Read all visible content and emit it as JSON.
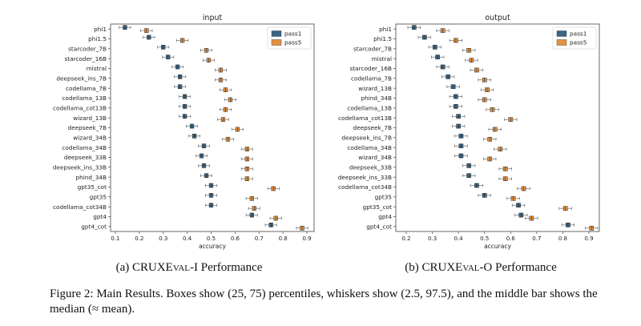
{
  "chart_data": [
    {
      "type": "boxplot",
      "title": "input",
      "xlabel": "accuracy",
      "xlim": [
        0.08,
        0.93
      ],
      "xticks": [
        "0.1",
        "0.2",
        "0.3",
        "0.4",
        "0.5",
        "0.6",
        "0.7",
        "0.8",
        "0.9"
      ],
      "legend": {
        "position": "top-right",
        "entries": [
          "pass1",
          "pass5"
        ]
      },
      "rows": [
        {
          "label": "phi1",
          "pass1": 0.14,
          "pass5": 0.23
        },
        {
          "label": "phi1.5",
          "pass1": 0.24,
          "pass5": 0.38
        },
        {
          "label": "starcoder_7B",
          "pass1": 0.3,
          "pass5": 0.48
        },
        {
          "label": "starcoder_16B",
          "pass1": 0.32,
          "pass5": 0.49
        },
        {
          "label": "mistral",
          "pass1": 0.36,
          "pass5": 0.54
        },
        {
          "label": "deepseek_ins_7B",
          "pass1": 0.37,
          "pass5": 0.54
        },
        {
          "label": "codellama_7B",
          "pass1": 0.37,
          "pass5": 0.56
        },
        {
          "label": "codellama_13B",
          "pass1": 0.39,
          "pass5": 0.58
        },
        {
          "label": "codellama_cot13B",
          "pass1": 0.39,
          "pass5": 0.56
        },
        {
          "label": "wizard_13B",
          "pass1": 0.39,
          "pass5": 0.55
        },
        {
          "label": "deepseek_7B",
          "pass1": 0.42,
          "pass5": 0.61
        },
        {
          "label": "wizard_34B",
          "pass1": 0.43,
          "pass5": 0.57
        },
        {
          "label": "codellama_34B",
          "pass1": 0.47,
          "pass5": 0.65
        },
        {
          "label": "deepseek_33B",
          "pass1": 0.46,
          "pass5": 0.65
        },
        {
          "label": "deepseek_ins_33B",
          "pass1": 0.47,
          "pass5": 0.65
        },
        {
          "label": "phind_34B",
          "pass1": 0.48,
          "pass5": 0.65
        },
        {
          "label": "gpt35_cot",
          "pass1": 0.5,
          "pass5": 0.76
        },
        {
          "label": "gpt35",
          "pass1": 0.5,
          "pass5": 0.67
        },
        {
          "label": "codellama_cot34B",
          "pass1": 0.5,
          "pass5": 0.68
        },
        {
          "label": "gpt4",
          "pass1": 0.67,
          "pass5": 0.77
        },
        {
          "label": "gpt4_cot",
          "pass1": 0.75,
          "pass5": 0.88
        }
      ]
    },
    {
      "type": "boxplot",
      "title": "output",
      "xlabel": "accuracy",
      "xlim": [
        0.16,
        0.94
      ],
      "xticks": [
        "0.2",
        "0.3",
        "0.4",
        "0.5",
        "0.6",
        "0.7",
        "0.8",
        "0.9"
      ],
      "legend": {
        "position": "top-right",
        "entries": [
          "pass1",
          "pass5"
        ]
      },
      "rows": [
        {
          "label": "phi1",
          "pass1": 0.23,
          "pass5": 0.34
        },
        {
          "label": "phi1.5",
          "pass1": 0.27,
          "pass5": 0.39
        },
        {
          "label": "starcoder_7B",
          "pass1": 0.31,
          "pass5": 0.44
        },
        {
          "label": "mistral",
          "pass1": 0.32,
          "pass5": 0.45
        },
        {
          "label": "starcoder_16B",
          "pass1": 0.34,
          "pass5": 0.47
        },
        {
          "label": "codellama_7B",
          "pass1": 0.36,
          "pass5": 0.5
        },
        {
          "label": "wizard_13B",
          "pass1": 0.38,
          "pass5": 0.51
        },
        {
          "label": "phind_34B",
          "pass1": 0.39,
          "pass5": 0.5
        },
        {
          "label": "codellama_13B",
          "pass1": 0.39,
          "pass5": 0.53
        },
        {
          "label": "codellama_cot13B",
          "pass1": 0.4,
          "pass5": 0.6
        },
        {
          "label": "deepseek_7B",
          "pass1": 0.4,
          "pass5": 0.54
        },
        {
          "label": "deepseek_ins_7B",
          "pass1": 0.41,
          "pass5": 0.52
        },
        {
          "label": "codellama_34B",
          "pass1": 0.41,
          "pass5": 0.56
        },
        {
          "label": "wizard_34B",
          "pass1": 0.41,
          "pass5": 0.52
        },
        {
          "label": "deepseek_33B",
          "pass1": 0.44,
          "pass5": 0.58
        },
        {
          "label": "deepseek_ins_33B",
          "pass1": 0.44,
          "pass5": 0.58
        },
        {
          "label": "codellama_cot34B",
          "pass1": 0.47,
          "pass5": 0.65
        },
        {
          "label": "gpt35",
          "pass1": 0.5,
          "pass5": 0.61
        },
        {
          "label": "gpt35_cot",
          "pass1": 0.63,
          "pass5": 0.81
        },
        {
          "label": "gpt4",
          "pass1": 0.64,
          "pass5": 0.68
        },
        {
          "label": "gpt4_cot",
          "pass1": 0.82,
          "pass5": 0.91
        }
      ]
    }
  ],
  "colors": {
    "pass1": "#3a6685",
    "pass5": "#e3913f",
    "axis": "#444444",
    "text": "#222222"
  },
  "captions": {
    "left_prefix": "(a) ",
    "left_name": "CRUXEval-I",
    "left_suffix": " Performance",
    "right_prefix": "(b) ",
    "right_name": "CRUXEval-O",
    "right_suffix": " Performance",
    "figure": "Figure 2: Main Results. Boxes show (25, 75) percentiles, whiskers show (2.5, 97.5), and the middle bar shows the median (≈ mean)."
  }
}
